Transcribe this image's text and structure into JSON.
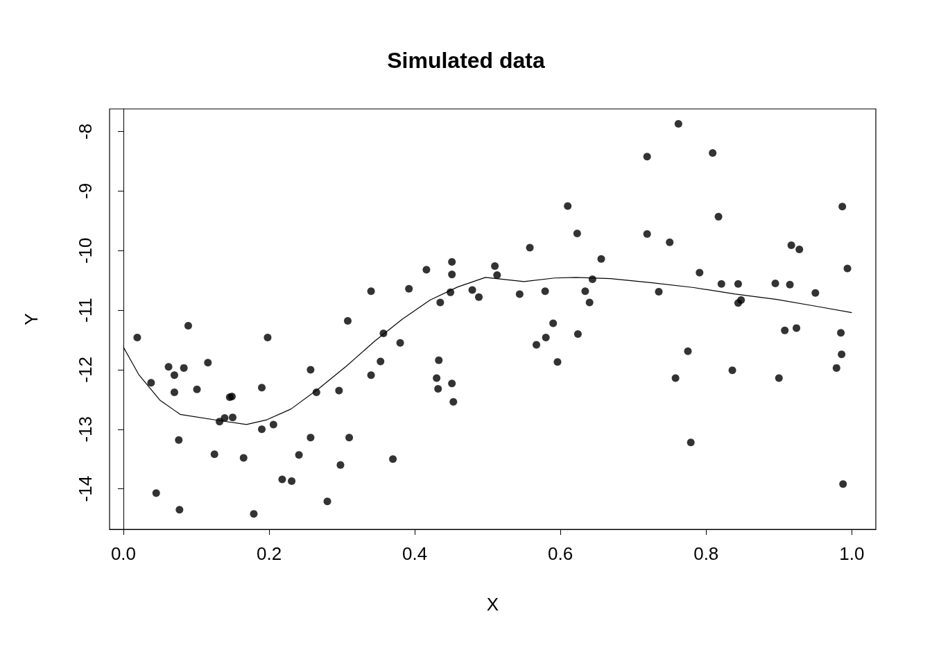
{
  "chart_data": {
    "type": "scatter",
    "title": "Simulated data",
    "xlabel": "X",
    "ylabel": "Y",
    "xlim": [
      -0.019,
      1.033
    ],
    "ylim": [
      -14.68,
      -7.62
    ],
    "xticks": [
      {
        "value": 0,
        "label": "0.0"
      },
      0.2,
      0.4,
      0.6,
      0.8,
      {
        "value": 1,
        "label": "1.0"
      }
    ],
    "yticks": [
      -14,
      -13,
      -12,
      -11,
      -10,
      -9,
      -8
    ],
    "marker": "circle",
    "series": [
      {
        "color": "#000000",
        "x": [
          0.019,
          0.038,
          0.045,
          0.062,
          0.07,
          0.07,
          0.076,
          0.077,
          0.083,
          0.089,
          0.101,
          0.116,
          0.125,
          0.132,
          0.139,
          0.146,
          0.149,
          0.15,
          0.165,
          0.179,
          0.19,
          0.19,
          0.198,
          0.206,
          0.218,
          0.231,
          0.241,
          0.257,
          0.257,
          0.265,
          0.28,
          0.296,
          0.298,
          0.308,
          0.31,
          0.34,
          0.34,
          0.353,
          0.357,
          0.37,
          0.38,
          0.392,
          0.416,
          0.43,
          0.432,
          0.433,
          0.435,
          0.449,
          0.451,
          0.451,
          0.451,
          0.453,
          0.479,
          0.488,
          0.51,
          0.513,
          0.544,
          0.558,
          0.567,
          0.579,
          0.58,
          0.59,
          0.596,
          0.61,
          0.623,
          0.624,
          0.634,
          0.64,
          0.644,
          0.656,
          0.719,
          0.719,
          0.735,
          0.75,
          0.758,
          0.762,
          0.775,
          0.779,
          0.791,
          0.809,
          0.817,
          0.821,
          0.836,
          0.844,
          0.844,
          0.848,
          0.895,
          0.9,
          0.908,
          0.915,
          0.917,
          0.924,
          0.928,
          0.95,
          0.979,
          0.985,
          0.986,
          0.987,
          0.988,
          0.994
        ],
        "values": [
          -11.46,
          -12.22,
          -14.07,
          -11.95,
          -12.09,
          -12.38,
          -13.18,
          -14.35,
          -11.97,
          -11.26,
          -12.33,
          -11.88,
          -13.42,
          -12.87,
          -12.81,
          -12.46,
          -12.45,
          -12.8,
          -13.48,
          -14.42,
          -12.3,
          -13.0,
          -11.46,
          -12.92,
          -13.84,
          -13.87,
          -13.43,
          -12.0,
          -13.14,
          -12.38,
          -14.21,
          -12.35,
          -13.6,
          -11.18,
          -13.14,
          -12.09,
          -10.68,
          -11.86,
          -11.39,
          -13.5,
          -11.55,
          -10.64,
          -10.32,
          -12.14,
          -12.32,
          -11.84,
          -10.87,
          -10.7,
          -10.19,
          -10.4,
          -12.23,
          -12.54,
          -10.66,
          -10.78,
          -10.26,
          -10.41,
          -10.73,
          -9.95,
          -11.58,
          -10.68,
          -11.46,
          -11.22,
          -11.87,
          -9.25,
          -9.71,
          -11.4,
          -10.68,
          -10.87,
          -10.48,
          -10.14,
          -8.42,
          -9.72,
          -10.69,
          -9.86,
          -12.14,
          -7.87,
          -11.69,
          -13.22,
          -10.37,
          -8.36,
          -9.43,
          -10.56,
          -12.01,
          -10.56,
          -10.88,
          -10.83,
          -10.55,
          -12.14,
          -11.34,
          -10.57,
          -9.91,
          -11.3,
          -9.98,
          -10.71,
          -11.97,
          -11.38,
          -11.74,
          -9.26,
          -13.92,
          -10.3
        ]
      },
      {
        "type": "line",
        "color": "#000000",
        "line_style": "solid",
        "marker": "none",
        "x": [
          0,
          0.021,
          0.05,
          0.078,
          0.135,
          0.169,
          0.197,
          0.23,
          0.269,
          0.307,
          0.345,
          0.383,
          0.421,
          0.459,
          0.497,
          0.55,
          0.592,
          0.621,
          0.669,
          0.726,
          0.783,
          0.84,
          0.897,
          0.954,
          1.0
        ],
        "values": [
          -11.62,
          -12.08,
          -12.51,
          -12.75,
          -12.86,
          -12.92,
          -12.84,
          -12.66,
          -12.31,
          -11.93,
          -11.52,
          -11.15,
          -10.83,
          -10.61,
          -10.45,
          -10.52,
          -10.46,
          -10.45,
          -10.47,
          -10.54,
          -10.62,
          -10.73,
          -10.82,
          -10.94,
          -11.04
        ]
      }
    ]
  }
}
